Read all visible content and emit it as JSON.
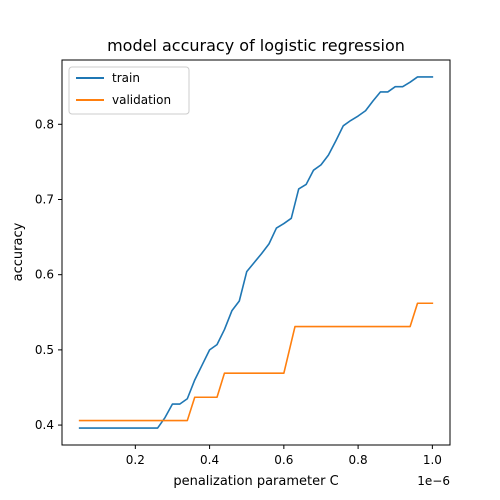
{
  "chart_data": {
    "type": "line",
    "title": "model accuracy of logistic regression",
    "xlabel": "penalization parameter C",
    "ylabel": "accuracy",
    "x_offset_label": "1e−6",
    "xlim": [
      0.0025,
      1.0475
    ],
    "ylim": [
      0.3735,
      0.8855
    ],
    "x_ticks": [
      0.2,
      0.4,
      0.6,
      0.8,
      1.0
    ],
    "x_tick_labels": [
      "0.2",
      "0.4",
      "0.6",
      "0.8",
      "1.0"
    ],
    "y_ticks": [
      0.4,
      0.5,
      0.6,
      0.7,
      0.8
    ],
    "y_tick_labels": [
      "0.4",
      "0.5",
      "0.6",
      "0.7",
      "0.8"
    ],
    "grid": false,
    "legend_position": "upper-left",
    "series": [
      {
        "name": "train",
        "color": "#1f77b4",
        "points": [
          [
            0.05,
            0.396
          ],
          [
            0.1,
            0.396
          ],
          [
            0.15,
            0.396
          ],
          [
            0.2,
            0.396
          ],
          [
            0.26,
            0.396
          ],
          [
            0.28,
            0.41
          ],
          [
            0.3,
            0.428
          ],
          [
            0.32,
            0.428
          ],
          [
            0.34,
            0.435
          ],
          [
            0.36,
            0.46
          ],
          [
            0.38,
            0.48
          ],
          [
            0.4,
            0.5
          ],
          [
            0.42,
            0.507
          ],
          [
            0.44,
            0.527
          ],
          [
            0.46,
            0.552
          ],
          [
            0.48,
            0.565
          ],
          [
            0.5,
            0.604
          ],
          [
            0.52,
            0.616
          ],
          [
            0.54,
            0.628
          ],
          [
            0.56,
            0.641
          ],
          [
            0.58,
            0.662
          ],
          [
            0.6,
            0.668
          ],
          [
            0.62,
            0.675
          ],
          [
            0.64,
            0.714
          ],
          [
            0.66,
            0.72
          ],
          [
            0.68,
            0.739
          ],
          [
            0.7,
            0.746
          ],
          [
            0.72,
            0.759
          ],
          [
            0.74,
            0.778
          ],
          [
            0.76,
            0.798
          ],
          [
            0.78,
            0.805
          ],
          [
            0.8,
            0.811
          ],
          [
            0.82,
            0.818
          ],
          [
            0.84,
            0.831
          ],
          [
            0.86,
            0.843
          ],
          [
            0.88,
            0.843
          ],
          [
            0.9,
            0.85
          ],
          [
            0.92,
            0.85
          ],
          [
            0.94,
            0.856
          ],
          [
            0.96,
            0.863
          ],
          [
            0.98,
            0.863
          ],
          [
            1.0,
            0.863
          ]
        ]
      },
      {
        "name": "validation",
        "color": "#ff7f0e",
        "points": [
          [
            0.05,
            0.406
          ],
          [
            0.34,
            0.406
          ],
          [
            0.36,
            0.437
          ],
          [
            0.42,
            0.437
          ],
          [
            0.44,
            0.469
          ],
          [
            0.6,
            0.469
          ],
          [
            0.63,
            0.531
          ],
          [
            0.94,
            0.531
          ],
          [
            0.96,
            0.562
          ],
          [
            1.0,
            0.562
          ]
        ]
      }
    ]
  }
}
